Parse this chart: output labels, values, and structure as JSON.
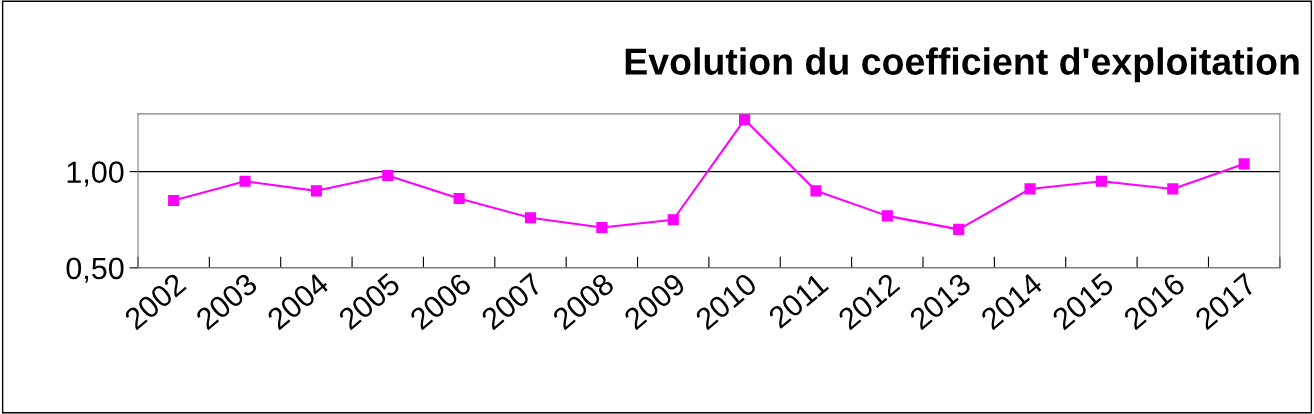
{
  "chart_data": {
    "type": "line",
    "title": "Evolution du coefficient d'exploitation",
    "categories": [
      "2002",
      "2003",
      "2004",
      "2005",
      "2006",
      "2007",
      "2008",
      "2009",
      "2010",
      "2011",
      "2012",
      "2013",
      "2014",
      "2015",
      "2016",
      "2017"
    ],
    "series": [
      {
        "color": "#ff00ff",
        "values": [
          0.85,
          0.95,
          0.9,
          0.98,
          0.86,
          0.76,
          0.71,
          0.75,
          1.27,
          0.9,
          0.77,
          0.7,
          0.91,
          0.95,
          0.91,
          1.04
        ]
      }
    ],
    "ylim": [
      0.5,
      1.3
    ],
    "yticks": [
      {
        "value": 0.5,
        "label": "0,50"
      },
      {
        "value": 1.0,
        "label": "1,00"
      }
    ],
    "grid": "y",
    "marker": "square",
    "line_style": "solid"
  }
}
